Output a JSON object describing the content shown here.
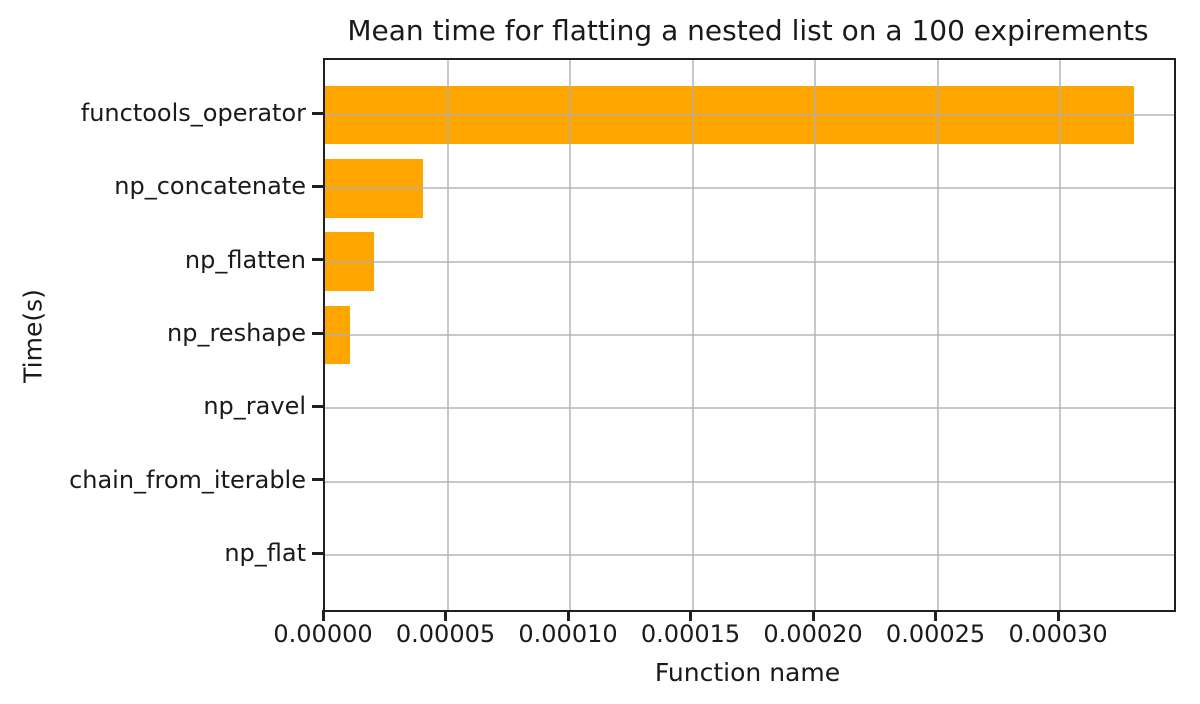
{
  "chart_data": {
    "type": "bar",
    "orientation": "horizontal",
    "title": "Mean time for flatting a nested list on a 100 expirements",
    "xlabel": "Function name",
    "ylabel": "Time(s)",
    "categories": [
      "functools_operator",
      "np_concatenate",
      "np_flatten",
      "np_reshape",
      "np_ravel",
      "chain_from_iterable",
      "np_flat"
    ],
    "values": [
      0.00033,
      4e-05,
      2e-05,
      1e-05,
      0,
      0,
      0
    ],
    "x_ticks": [
      0,
      5e-05,
      0.0001,
      0.00015,
      0.0002,
      0.00025,
      0.0003
    ],
    "x_tick_labels": [
      "0.00000",
      "0.00005",
      "0.00010",
      "0.00015",
      "0.00020",
      "0.00025",
      "0.00030"
    ],
    "xlim": [
      0,
      0.0003465
    ],
    "grid": true,
    "legend": "none",
    "bar_color": "#FFA500",
    "background_color": "#ffffff",
    "grid_color": "#b0b0b0"
  }
}
